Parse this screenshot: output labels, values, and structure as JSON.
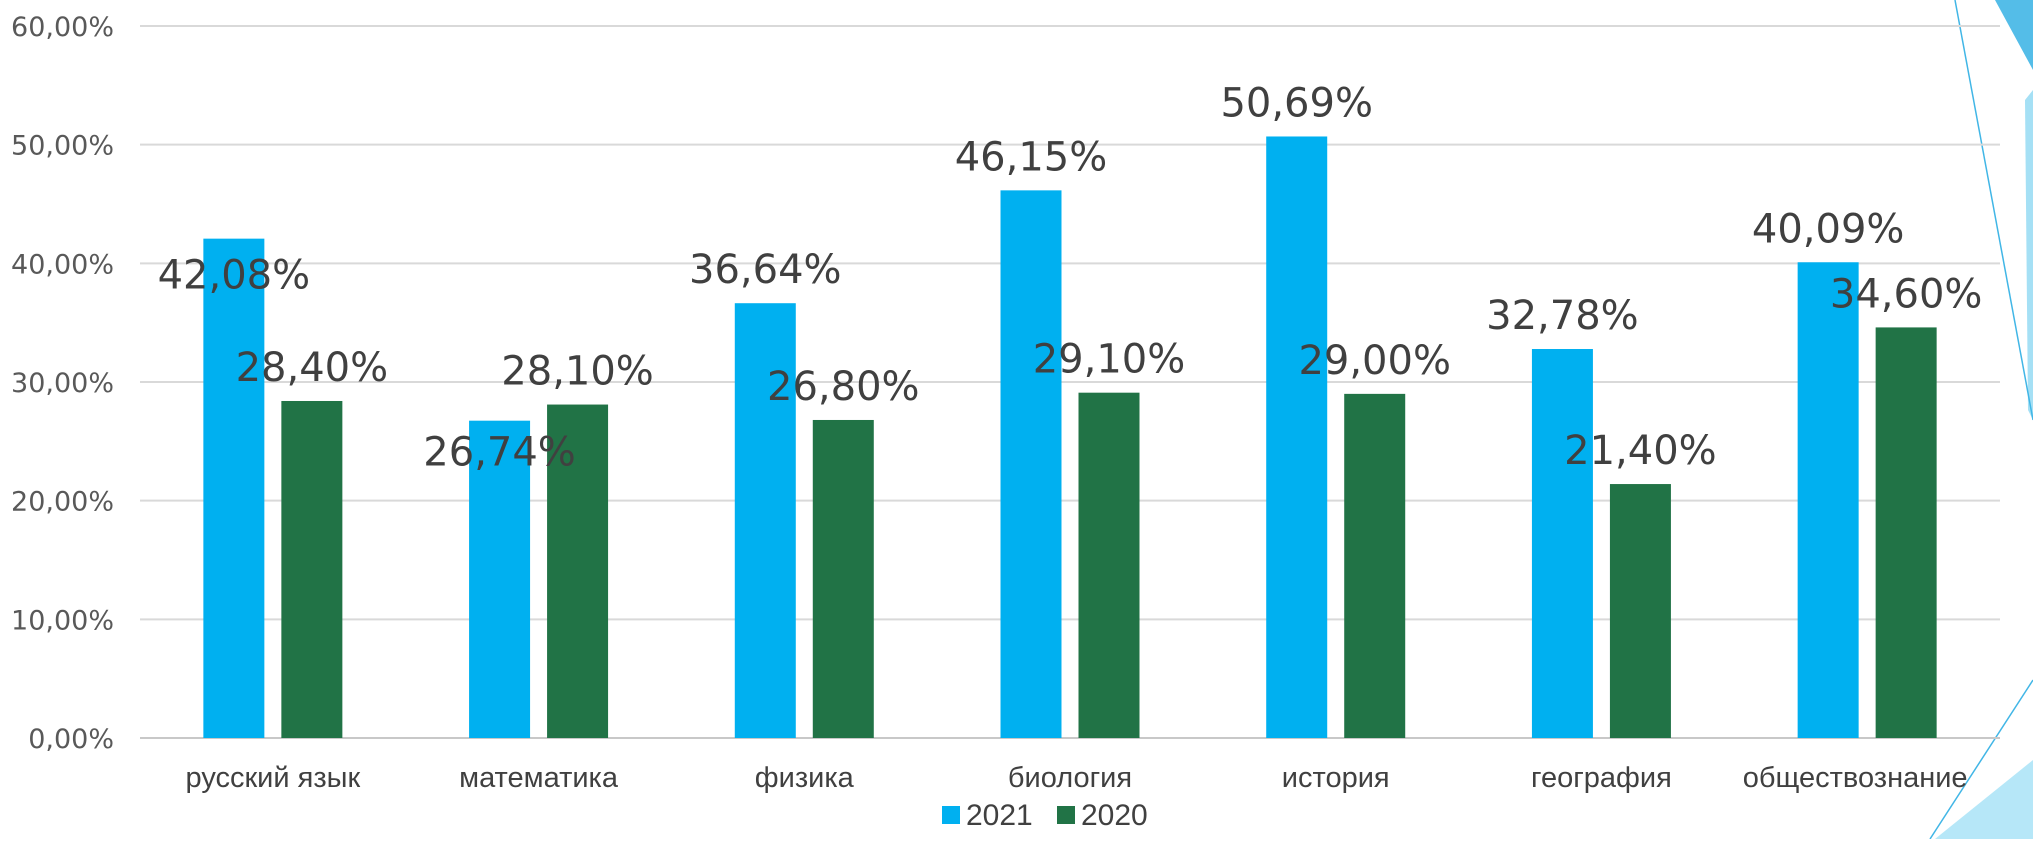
{
  "chart_data": {
    "type": "bar",
    "categories": [
      "русский язык",
      "математика",
      "физика",
      "биология",
      "история",
      "география",
      "обществознание"
    ],
    "series": [
      {
        "name": "2021",
        "color": "#00B0F0",
        "values": [
          42.08,
          26.74,
          36.64,
          46.15,
          50.69,
          32.78,
          40.09
        ],
        "labels": [
          "42,08%",
          "26,74%",
          "36,64%",
          "46,15%",
          "50,69%",
          "32,78%",
          "40,09%"
        ]
      },
      {
        "name": "2020",
        "color": "#217346",
        "values": [
          28.4,
          28.1,
          26.8,
          29.1,
          29.0,
          21.4,
          34.6
        ],
        "labels": [
          "28,40%",
          "28,10%",
          "26,80%",
          "29,10%",
          "29,00%",
          "21,40%",
          "34,60%"
        ]
      }
    ],
    "ylim": [
      0,
      60
    ],
    "yticks": [
      "0,00%",
      "10,00%",
      "20,00%",
      "30,00%",
      "40,00%",
      "50,00%",
      "60,00%"
    ],
    "grid": true,
    "legend_position": "bottom",
    "title": "",
    "xlabel": "",
    "ylabel": ""
  }
}
